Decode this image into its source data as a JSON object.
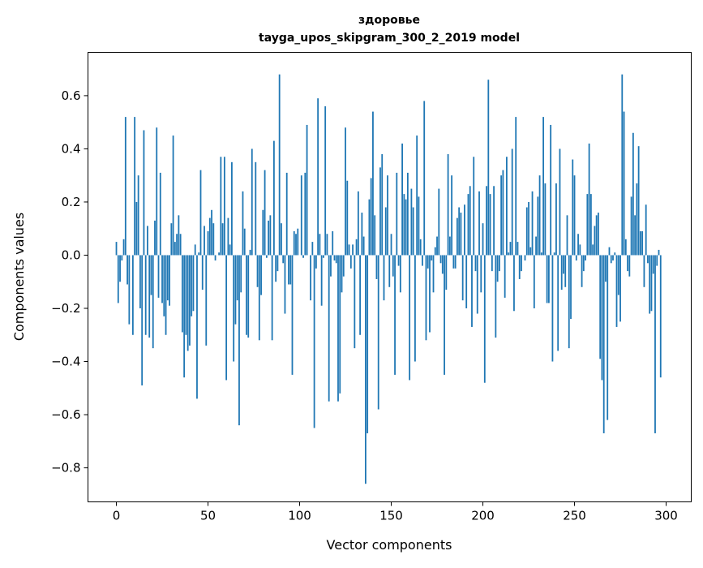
{
  "chart_data": {
    "type": "bar",
    "title": "здоровье",
    "subtitle": "tayga_upos_skipgram_300_2_2019 model",
    "xlabel": "Vector components",
    "ylabel": "Components values",
    "xlim": [
      -15.5,
      313.7
    ],
    "ylim": [
      -0.928,
      0.763
    ],
    "xticks": [
      0,
      50,
      100,
      150,
      200,
      250,
      300
    ],
    "xtick_labels": [
      "0",
      "50",
      "100",
      "150",
      "200",
      "250",
      "300"
    ],
    "yticks": [
      0.6,
      0.4,
      0.2,
      0.0,
      -0.2,
      -0.4,
      -0.6,
      -0.8
    ],
    "ytick_labels": [
      "0.6",
      "0.4",
      "0.2",
      "0.0",
      "−0.2",
      "−0.4",
      "−0.6",
      "−0.8"
    ],
    "grid": false,
    "bar_color": "#1f77b4",
    "values": [
      0.05,
      -0.18,
      -0.1,
      -0.02,
      0.06,
      0.52,
      -0.11,
      -0.26,
      0.0,
      -0.3,
      0.52,
      0.2,
      0.3,
      -0.2,
      -0.49,
      0.47,
      -0.3,
      0.11,
      -0.31,
      -0.15,
      -0.35,
      0.13,
      0.48,
      -0.16,
      0.31,
      -0.18,
      -0.23,
      -0.3,
      -0.17,
      -0.19,
      0.12,
      0.45,
      0.05,
      0.08,
      0.15,
      0.08,
      -0.29,
      -0.46,
      -0.3,
      -0.36,
      -0.34,
      -0.23,
      -0.21,
      0.04,
      -0.54,
      0.01,
      0.32,
      -0.13,
      0.11,
      -0.34,
      0.09,
      0.14,
      0.17,
      0.12,
      -0.02,
      0.0,
      0.01,
      0.37,
      0.12,
      0.37,
      -0.47,
      0.14,
      0.04,
      0.35,
      -0.4,
      -0.26,
      -0.17,
      -0.64,
      -0.14,
      0.24,
      0.1,
      -0.3,
      -0.31,
      0.02,
      0.4,
      0.0,
      0.35,
      -0.12,
      -0.32,
      -0.15,
      0.17,
      0.32,
      -0.01,
      0.13,
      0.15,
      -0.32,
      0.43,
      -0.1,
      -0.06,
      0.68,
      0.12,
      -0.03,
      -0.22,
      0.31,
      -0.11,
      -0.11,
      -0.45,
      0.09,
      0.08,
      0.1,
      0.0,
      0.3,
      -0.01,
      0.31,
      0.49,
      0.0,
      -0.17,
      0.05,
      -0.65,
      -0.05,
      0.59,
      0.08,
      -0.19,
      -0.01,
      0.56,
      0.08,
      -0.55,
      -0.08,
      0.09,
      -0.02,
      -0.03,
      -0.55,
      -0.52,
      -0.14,
      -0.08,
      0.48,
      0.28,
      0.04,
      -0.05,
      0.04,
      -0.35,
      0.06,
      0.24,
      -0.3,
      0.16,
      0.07,
      -0.86,
      -0.67,
      0.21,
      0.29,
      0.54,
      0.15,
      -0.09,
      -0.58,
      0.33,
      0.38,
      -0.17,
      0.18,
      0.3,
      -0.12,
      0.08,
      -0.08,
      -0.45,
      0.31,
      -0.04,
      -0.14,
      0.42,
      0.23,
      0.21,
      0.31,
      -0.47,
      0.25,
      0.18,
      -0.4,
      0.45,
      0.22,
      0.06,
      -0.04,
      0.58,
      -0.32,
      -0.05,
      -0.29,
      -0.02,
      -0.14,
      0.03,
      0.07,
      0.25,
      -0.03,
      -0.07,
      -0.45,
      -0.13,
      0.38,
      0.07,
      0.3,
      -0.05,
      -0.05,
      0.14,
      0.18,
      0.16,
      -0.17,
      0.19,
      -0.2,
      0.23,
      0.26,
      -0.27,
      0.37,
      -0.06,
      -0.22,
      0.24,
      -0.14,
      0.12,
      -0.48,
      0.26,
      0.66,
      0.23,
      -0.06,
      0.26,
      -0.31,
      -0.1,
      -0.06,
      0.3,
      0.32,
      -0.16,
      0.37,
      0.01,
      0.05,
      0.4,
      -0.21,
      0.52,
      0.05,
      -0.09,
      -0.06,
      0.0,
      -0.02,
      0.18,
      0.2,
      0.03,
      0.24,
      -0.2,
      0.07,
      0.22,
      0.3,
      0.01,
      0.52,
      0.27,
      -0.18,
      -0.18,
      0.49,
      -0.4,
      0.01,
      0.27,
      -0.36,
      0.4,
      -0.13,
      -0.07,
      -0.12,
      0.15,
      -0.35,
      -0.24,
      0.36,
      0.3,
      -0.02,
      0.08,
      0.04,
      -0.12,
      -0.06,
      -0.02,
      0.23,
      0.42,
      0.23,
      0.04,
      0.11,
      0.15,
      0.16,
      -0.39,
      -0.47,
      -0.67,
      -0.1,
      -0.62,
      0.03,
      -0.03,
      -0.02,
      0.01,
      -0.27,
      -0.15,
      -0.25,
      0.68,
      0.54,
      0.06,
      -0.06,
      -0.08,
      0.22,
      0.46,
      0.15,
      0.27,
      0.41,
      0.09,
      0.09,
      -0.12,
      0.19,
      -0.03,
      -0.22,
      -0.21,
      -0.07,
      -0.67,
      -0.04,
      0.02,
      -0.46,
      0.0,
      0.0
    ]
  }
}
